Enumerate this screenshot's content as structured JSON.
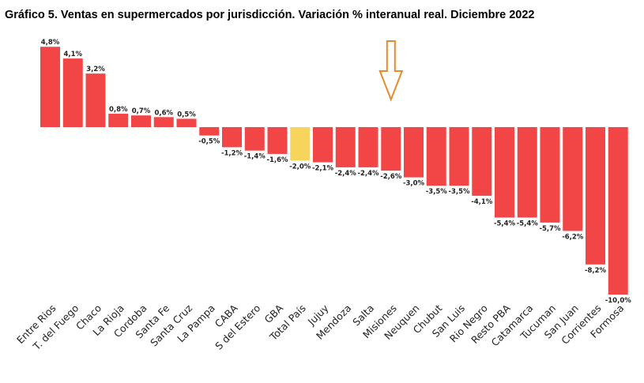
{
  "title": "Gráfico 5. Ventas en supermercados por jurisdicción. Variación % interanual real. Diciembre 2022",
  "colors": {
    "bar": "#f24646",
    "highlight": "#f7d55c",
    "arrow": "#e98a2a"
  },
  "annotation": {
    "type": "down-arrow",
    "target_category": "Misiones"
  },
  "chart_data": {
    "type": "bar",
    "title": "Gráfico 5. Ventas en supermercados por jurisdicción. Variación % interanual real. Diciembre 2022",
    "xlabel": "",
    "ylabel": "",
    "ylim": [
      -10.0,
      4.8
    ],
    "grid": false,
    "highlight_category": "Total País",
    "categories": [
      "Entre Rios",
      "T. del Fuego",
      "Chaco",
      "La Rioja",
      "Cordoba",
      "Santa Fe",
      "Santa Cruz",
      "La Pampa",
      "CABA",
      "S del Estero",
      "GBA",
      "Total País",
      "Jujuy",
      "Mendoza",
      "Salta",
      "Misiones",
      "Neuquen",
      "Chubut",
      "San Luis",
      "Rio Negro",
      "Resto PBA",
      "Catamarca",
      "Tucuman",
      "San Juan",
      "Corrientes",
      "Formosa"
    ],
    "values": [
      4.8,
      4.1,
      3.2,
      0.8,
      0.7,
      0.6,
      0.5,
      -0.5,
      -1.2,
      -1.4,
      -1.6,
      -2.0,
      -2.1,
      -2.4,
      -2.4,
      -2.6,
      -3.0,
      -3.5,
      -3.5,
      -4.1,
      -5.4,
      -5.4,
      -5.7,
      -6.2,
      -8.2,
      -10.0
    ],
    "value_labels": [
      "4,8%",
      "4,1%",
      "3,2%",
      "0,8%",
      "0,7%",
      "0,6%",
      "0,5%",
      "-0,5%",
      "-1,2%",
      "-1,4%",
      "-1,6%",
      "-2,0%",
      "-2,1%",
      "-2,4%",
      "-2,4%",
      "-2,6%",
      "-3,0%",
      "-3,5%",
      "-3,5%",
      "-4,1%",
      "-5,4%",
      "-5,4%",
      "-5,7%",
      "-6,2%",
      "-8,2%",
      "-10,0%"
    ]
  }
}
